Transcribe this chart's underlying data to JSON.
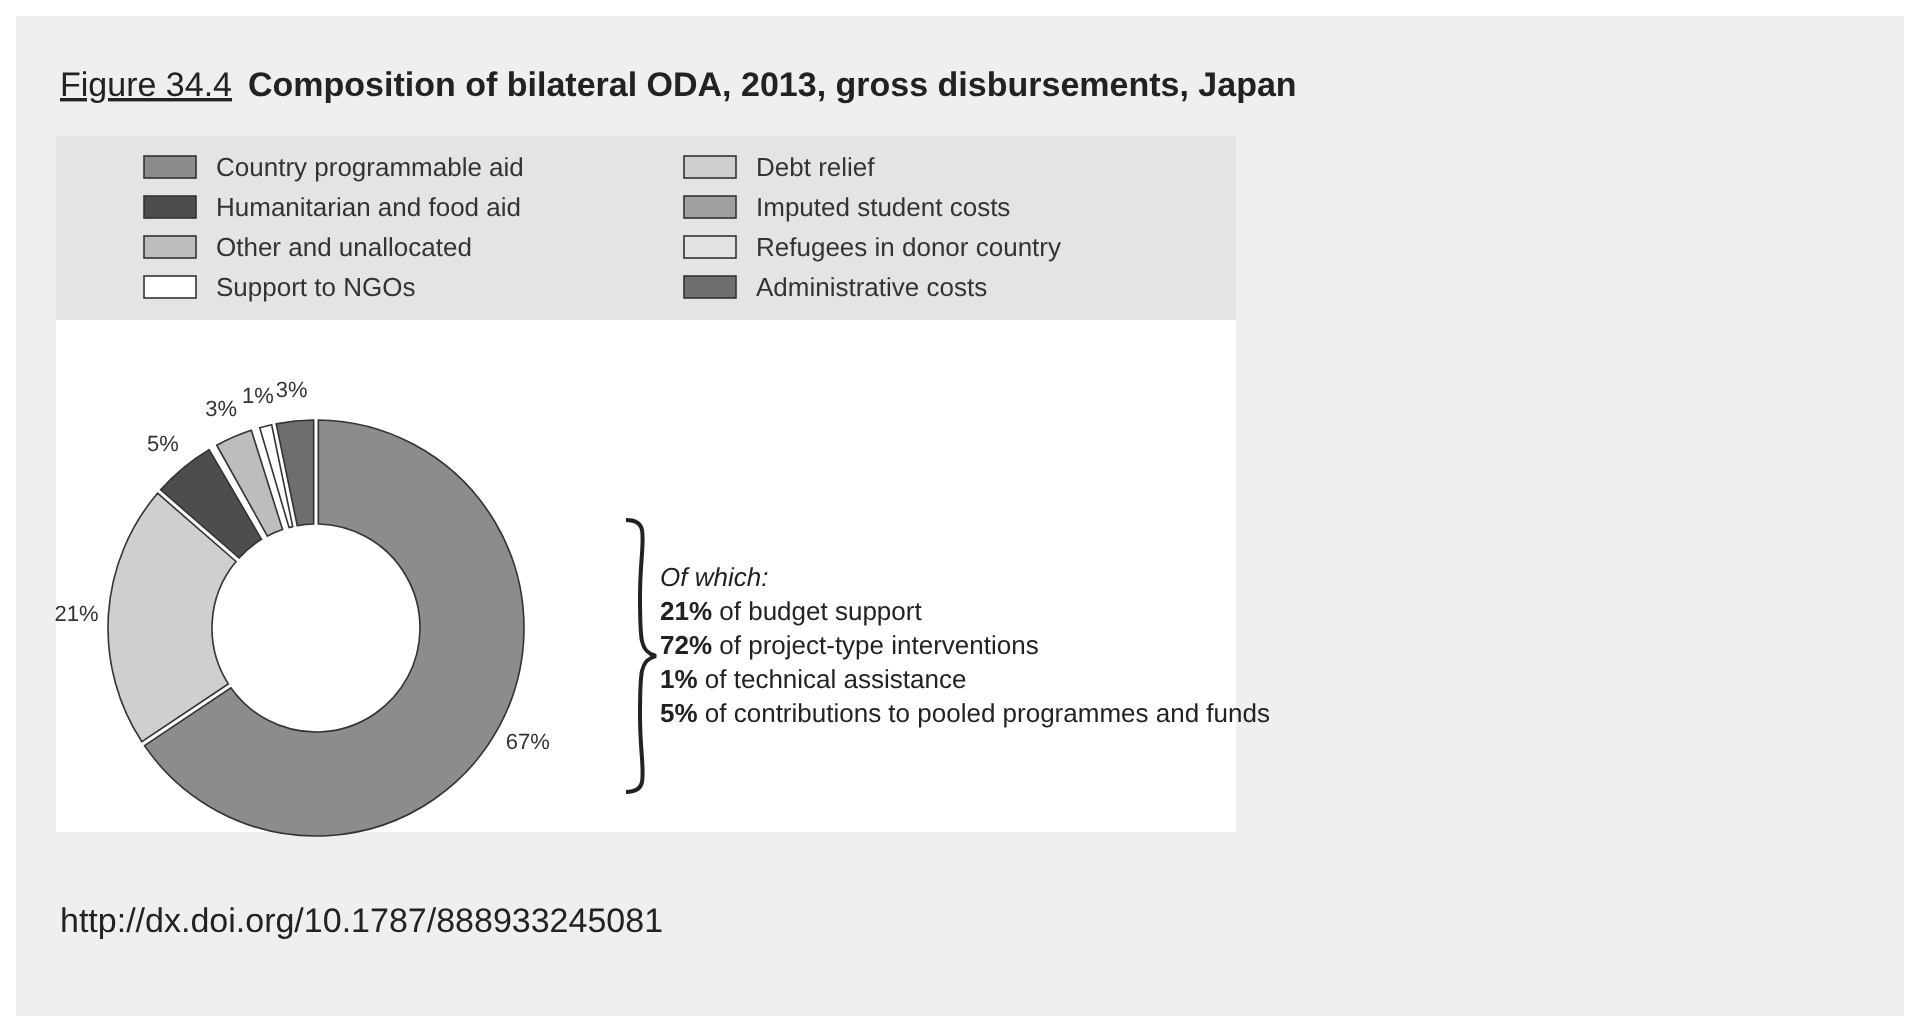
{
  "chart_data": {
    "type": "donut",
    "title": "Figure 34.4 Composition of bilateral ODA, 2013, gross disbursements, Japan",
    "categories": [
      "Country programmable aid",
      "Debt relief",
      "Humanitarian and food aid",
      "Imputed student costs",
      "Other and unallocated",
      "Refugees in donor country",
      "Support to NGOs",
      "Administrative costs"
    ],
    "values": [
      67,
      21,
      5,
      0,
      3,
      0,
      1,
      3
    ],
    "value_labels": [
      "67%",
      "21%",
      "5%",
      null,
      "3%",
      null,
      "1%",
      "3%"
    ],
    "colors": [
      "#8c8c8c",
      "#cfcfcf",
      "#4d4d4d",
      "#a0a0a0",
      "#bdbdbd",
      "#e3e3e3",
      "#ffffff",
      "#6e6e6e"
    ],
    "legend": "top",
    "annotations": [
      "Of which:",
      "21% of budget support",
      "72% of project-type interventions",
      "1% of technical assistance",
      "5% of contributions to pooled programmes and funds",
      "http://dx.doi.org/10.1787/888933245081"
    ]
  }
}
